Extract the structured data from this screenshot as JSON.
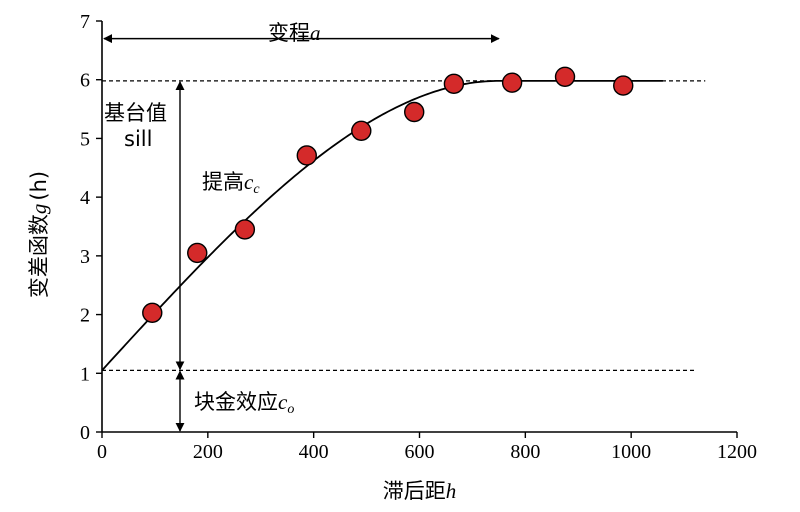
{
  "chart_data": {
    "type": "scatter",
    "title": "",
    "xlabel": {
      "text": "滞后距",
      "var": "h"
    },
    "ylabel": {
      "text": "变差函数",
      "var": "g",
      "paren": "(h)"
    },
    "xlim": [
      0,
      1200
    ],
    "ylim": [
      0,
      7
    ],
    "x_ticks": [
      0,
      200,
      400,
      600,
      800,
      1000,
      1200
    ],
    "y_ticks": [
      0,
      1,
      2,
      3,
      4,
      5,
      6,
      7
    ],
    "grid": false,
    "legend": "none",
    "points": [
      {
        "x": 95,
        "y": 2.03
      },
      {
        "x": 180,
        "y": 3.05
      },
      {
        "x": 270,
        "y": 3.45
      },
      {
        "x": 387,
        "y": 4.71
      },
      {
        "x": 490,
        "y": 5.13
      },
      {
        "x": 590,
        "y": 5.45
      },
      {
        "x": 665,
        "y": 5.93
      },
      {
        "x": 775,
        "y": 5.95
      },
      {
        "x": 875,
        "y": 6.05
      },
      {
        "x": 985,
        "y": 5.9
      }
    ],
    "model_curve": {
      "type": "spherical",
      "nugget": 1.05,
      "sill": 5.98,
      "range": 750,
      "x_max": 1060
    },
    "sill_line": {
      "y": 5.98,
      "x_end": 1140
    },
    "nugget_line": {
      "y": 1.05,
      "x_end": 1120
    },
    "point_color": "#d42a2a",
    "annotations": {
      "range": {
        "text": "变程",
        "var": "a",
        "x_from": 0,
        "x_to": 750,
        "y": 6.7
      },
      "sill": {
        "line1": "基台值",
        "line2": "sill"
      },
      "partial_sill": {
        "text": "提高",
        "var": "c",
        "sub": "c"
      },
      "nugget": {
        "text": "块金效应",
        "var": "c",
        "sub": "o"
      }
    }
  }
}
